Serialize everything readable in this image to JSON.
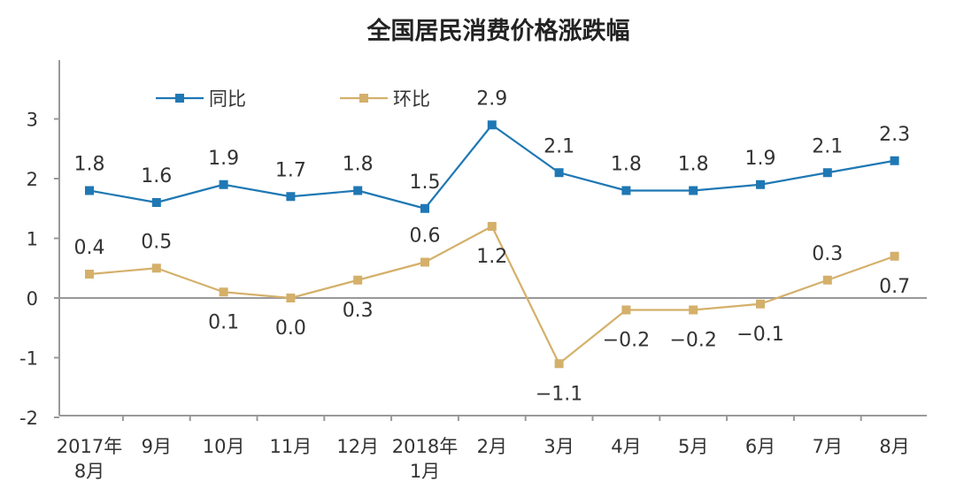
{
  "chart_data": {
    "type": "line",
    "title": "全国居民消费价格涨跌幅",
    "categories": [
      [
        "2017年",
        "8月"
      ],
      [
        "9月"
      ],
      [
        "10月"
      ],
      [
        "11月"
      ],
      [
        "12月"
      ],
      [
        "2018年",
        "1月"
      ],
      [
        "2月"
      ],
      [
        "3月"
      ],
      [
        "4月"
      ],
      [
        "5月"
      ],
      [
        "6月"
      ],
      [
        "7月"
      ],
      [
        "8月"
      ]
    ],
    "series": [
      {
        "name": "同比",
        "color": "#1f78b4",
        "values": [
          1.8,
          1.6,
          1.9,
          1.7,
          1.8,
          1.5,
          2.9,
          2.1,
          1.8,
          1.8,
          1.9,
          2.1,
          2.3
        ],
        "labels": [
          "1.8",
          "1.6",
          "1.9",
          "1.7",
          "1.8",
          "1.5",
          "2.9",
          "2.1",
          "1.8",
          "1.8",
          "1.9",
          "2.1",
          "2.3"
        ],
        "label_side": [
          "above",
          "above",
          "above",
          "above",
          "above",
          "above",
          "above",
          "above",
          "above",
          "above",
          "above",
          "above",
          "above"
        ]
      },
      {
        "name": "环比",
        "color": "#d4b06a",
        "values": [
          0.4,
          0.5,
          0.1,
          0.0,
          0.3,
          0.6,
          1.2,
          -1.1,
          -0.2,
          -0.2,
          -0.1,
          0.3,
          0.7
        ],
        "labels": [
          "0.4",
          "0.5",
          "0.1",
          "0.0",
          "0.3",
          "0.6",
          "1.2",
          "−1.1",
          "−0.2",
          "−0.2",
          "−0.1",
          "0.3",
          "0.7"
        ],
        "label_side": [
          "above",
          "above",
          "below",
          "below",
          "below",
          "above",
          "below",
          "below",
          "below",
          "below",
          "below",
          "above",
          "below"
        ]
      }
    ],
    "yticks": [
      3,
      2,
      1,
      0,
      -1,
      -2
    ],
    "ytick_labels": [
      "3",
      "2",
      "1",
      "0",
      "-1",
      "-2"
    ],
    "ylim": [
      -2,
      3.9
    ],
    "grid": false,
    "legend": "top-left",
    "axis_color": "#999999"
  }
}
